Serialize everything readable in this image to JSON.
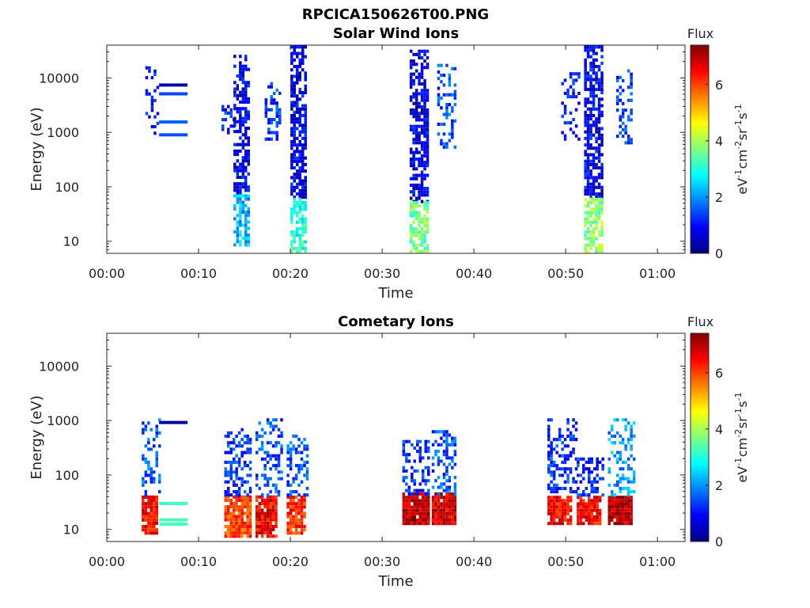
{
  "figure_title": "RPCICA150626T00.PNG",
  "colors": {
    "cmap": [
      "#000080",
      "#0000ff",
      "#0080ff",
      "#00ffff",
      "#80ff80",
      "#ffff00",
      "#ff8000",
      "#ff0000",
      "#800000"
    ]
  },
  "colorbar": {
    "title": "Flux",
    "label_parts": [
      "eV",
      "-1",
      "cm",
      "-2",
      "sr",
      "-1",
      "s",
      "-1"
    ],
    "range": [
      0,
      7.4
    ],
    "ticks": [
      0,
      2,
      4,
      6
    ],
    "tick_labels": [
      "0",
      "2",
      "4",
      "6"
    ]
  },
  "chart_data": [
    {
      "type": "heatmap",
      "title": "Solar Wind Ions",
      "xlabel": "Time",
      "ylabel": "Energy (eV)",
      "x_unit": "minutes since 00:00",
      "xlim": [
        0,
        63
      ],
      "ylim": [
        6,
        40000
      ],
      "yscale": "log",
      "x_ticks": [
        0,
        10,
        20,
        30,
        40,
        50,
        60
      ],
      "x_tick_labels": [
        "00:00",
        "00:10",
        "00:20",
        "00:30",
        "00:40",
        "00:50",
        "01:00"
      ],
      "y_ticks": [
        10,
        100,
        1000,
        10000
      ],
      "y_tick_labels": [
        "10",
        "100",
        "1000",
        "10000"
      ],
      "grid": false,
      "bands": [
        {
          "t0": 5.7,
          "t1": 8.8,
          "e": 7400,
          "v": 0.3
        },
        {
          "t0": 5.7,
          "t1": 8.8,
          "e": 5100,
          "v": 1.4
        },
        {
          "t0": 5.7,
          "t1": 8.8,
          "e": 1550,
          "v": 1.6
        },
        {
          "t0": 5.7,
          "t1": 8.8,
          "e": 900,
          "v": 1.5
        }
      ],
      "blobs": [
        {
          "t0": 4.2,
          "t1": 5.5,
          "e0": 900,
          "e1": 16000,
          "v": 1.0,
          "d": 0.3
        },
        {
          "t0": 12.5,
          "t1": 13.8,
          "e0": 800,
          "e1": 3000,
          "v": 1.2,
          "d": 0.35
        },
        {
          "t0": 13.8,
          "t1": 15.6,
          "e0": 70,
          "e1": 25000,
          "v": 0.8,
          "d": 0.6
        },
        {
          "t0": 13.8,
          "t1": 15.6,
          "e0": 8,
          "e1": 70,
          "v": 2.2,
          "d": 0.6
        },
        {
          "t0": 17.2,
          "t1": 18.8,
          "e0": 700,
          "e1": 9000,
          "v": 1.3,
          "d": 0.35
        },
        {
          "t0": 20.0,
          "t1": 21.8,
          "e0": 60,
          "e1": 35000,
          "v": 0.8,
          "d": 0.7
        },
        {
          "t0": 20.0,
          "t1": 21.8,
          "e0": 6,
          "e1": 60,
          "v": 3.0,
          "d": 0.65
        },
        {
          "t0": 33.0,
          "t1": 34.8,
          "e0": 50,
          "e1": 30000,
          "v": 0.7,
          "d": 0.65
        },
        {
          "t0": 33.0,
          "t1": 34.8,
          "e0": 6,
          "e1": 50,
          "v": 3.6,
          "d": 0.75
        },
        {
          "t0": 36.0,
          "t1": 38.0,
          "e0": 500,
          "e1": 18000,
          "v": 1.4,
          "d": 0.35
        },
        {
          "t0": 49.5,
          "t1": 51.5,
          "e0": 700,
          "e1": 12000,
          "v": 1.0,
          "d": 0.3
        },
        {
          "t0": 52.0,
          "t1": 54.0,
          "e0": 60,
          "e1": 35000,
          "v": 0.8,
          "d": 0.65
        },
        {
          "t0": 52.0,
          "t1": 54.0,
          "e0": 6,
          "e1": 60,
          "v": 3.8,
          "d": 0.7
        },
        {
          "t0": 55.5,
          "t1": 57.2,
          "e0": 600,
          "e1": 15000,
          "v": 1.3,
          "d": 0.35
        }
      ]
    },
    {
      "type": "heatmap",
      "title": "Cometary Ions",
      "xlabel": "Time",
      "ylabel": "Energy (eV)",
      "x_unit": "minutes since 00:00",
      "xlim": [
        0,
        63
      ],
      "ylim": [
        6,
        40000
      ],
      "yscale": "log",
      "x_ticks": [
        0,
        10,
        20,
        30,
        40,
        50,
        60
      ],
      "x_tick_labels": [
        "00:00",
        "00:10",
        "00:20",
        "00:30",
        "00:40",
        "00:50",
        "01:00"
      ],
      "y_ticks": [
        10,
        100,
        1000,
        10000
      ],
      "y_tick_labels": [
        "10",
        "100",
        "1000",
        "10000"
      ],
      "grid": false,
      "bands": [
        {
          "t0": 5.7,
          "t1": 8.8,
          "e": 920,
          "v": 0.3
        },
        {
          "t0": 5.7,
          "t1": 8.8,
          "e": 30,
          "v": 3.2
        },
        {
          "t0": 5.7,
          "t1": 8.8,
          "e": 15,
          "v": 3.3
        },
        {
          "t0": 5.7,
          "t1": 8.8,
          "e": 12.5,
          "v": 3.2
        }
      ],
      "blobs": [
        {
          "t0": 3.8,
          "t1": 5.3,
          "e0": 8,
          "e1": 40,
          "v": 6.5,
          "d": 0.9
        },
        {
          "t0": 3.8,
          "t1": 5.6,
          "e0": 40,
          "e1": 1200,
          "v": 1.6,
          "d": 0.3
        },
        {
          "t0": 12.8,
          "t1": 15.8,
          "e0": 7,
          "e1": 40,
          "v": 6.0,
          "d": 0.9
        },
        {
          "t0": 12.8,
          "t1": 15.8,
          "e0": 40,
          "e1": 700,
          "v": 1.3,
          "d": 0.45
        },
        {
          "t0": 16.2,
          "t1": 18.6,
          "e0": 7,
          "e1": 40,
          "v": 6.5,
          "d": 0.9
        },
        {
          "t0": 16.2,
          "t1": 19.0,
          "e0": 40,
          "e1": 1000,
          "v": 1.5,
          "d": 0.35
        },
        {
          "t0": 19.6,
          "t1": 21.6,
          "e0": 8,
          "e1": 40,
          "v": 6.2,
          "d": 0.9
        },
        {
          "t0": 19.6,
          "t1": 22.0,
          "e0": 40,
          "e1": 500,
          "v": 1.5,
          "d": 0.35
        },
        {
          "t0": 32.2,
          "t1": 35.0,
          "e0": 12,
          "e1": 42,
          "v": 7.0,
          "d": 0.95
        },
        {
          "t0": 32.2,
          "t1": 35.0,
          "e0": 42,
          "e1": 400,
          "v": 1.2,
          "d": 0.45
        },
        {
          "t0": 35.4,
          "t1": 37.8,
          "e0": 12,
          "e1": 42,
          "v": 6.8,
          "d": 0.95
        },
        {
          "t0": 35.4,
          "t1": 38.0,
          "e0": 42,
          "e1": 600,
          "v": 1.5,
          "d": 0.4
        },
        {
          "t0": 48.0,
          "t1": 50.6,
          "e0": 12,
          "e1": 40,
          "v": 6.5,
          "d": 0.9
        },
        {
          "t0": 48.0,
          "t1": 51.0,
          "e0": 40,
          "e1": 1000,
          "v": 1.3,
          "d": 0.35
        },
        {
          "t0": 51.2,
          "t1": 53.8,
          "e0": 12,
          "e1": 40,
          "v": 6.5,
          "d": 0.9
        },
        {
          "t0": 51.2,
          "t1": 54.0,
          "e0": 40,
          "e1": 200,
          "v": 1.2,
          "d": 0.45
        },
        {
          "t0": 54.6,
          "t1": 57.0,
          "e0": 12,
          "e1": 40,
          "v": 7.0,
          "d": 0.95
        },
        {
          "t0": 54.6,
          "t1": 57.4,
          "e0": 40,
          "e1": 1000,
          "v": 2.0,
          "d": 0.4
        }
      ]
    }
  ]
}
